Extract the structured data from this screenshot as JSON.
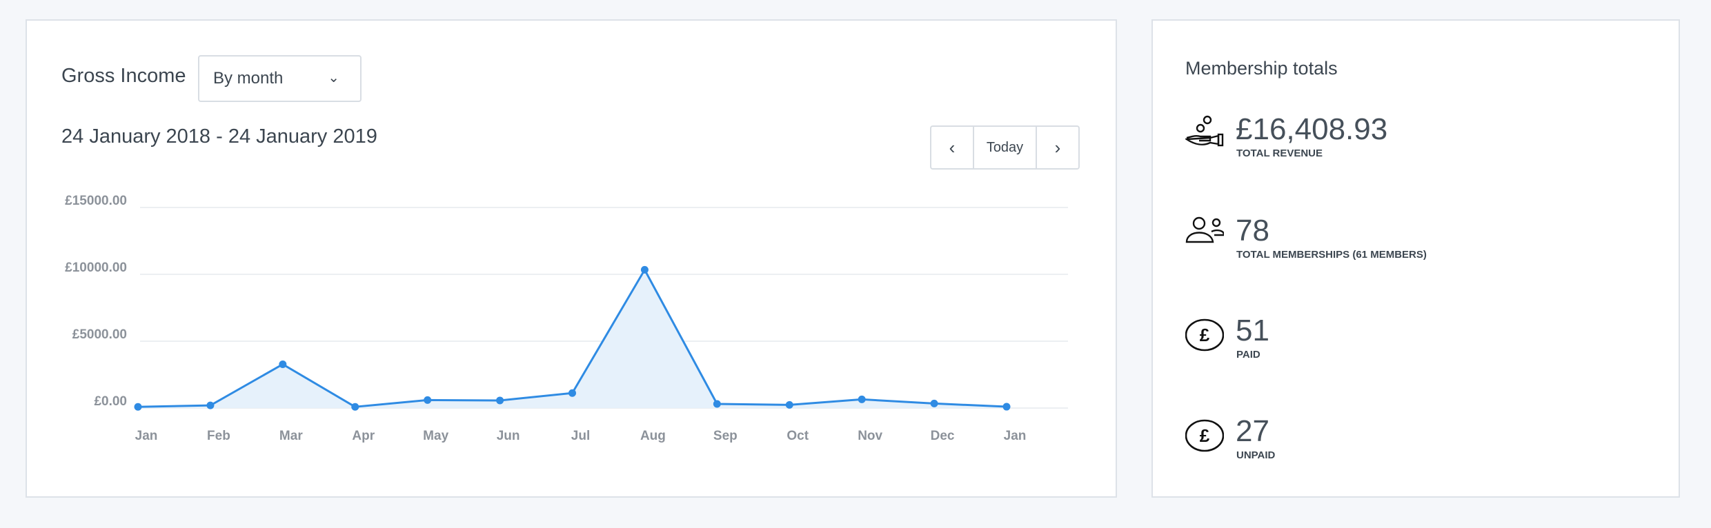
{
  "gross_income": {
    "title": "Gross Income",
    "period_select": {
      "value": "By month"
    },
    "date_range": "24 January 2018 - 24 January 2019",
    "nav": {
      "prev_icon": "chevron-left-icon",
      "today_label": "Today",
      "next_icon": "chevron-right-icon"
    }
  },
  "chart_data": {
    "type": "area",
    "categories": [
      "Jan",
      "Feb",
      "Mar",
      "Apr",
      "May",
      "Jun",
      "Jul",
      "Aug",
      "Sep",
      "Oct",
      "Nov",
      "Dec",
      "Jan"
    ],
    "values": [
      90,
      200,
      3275,
      90,
      600,
      570,
      1120,
      10340,
      310,
      240,
      650,
      340,
      100
    ],
    "y_ticks": [
      "£0.00",
      "£5000.00",
      "£10000.00",
      "£15000.00"
    ],
    "y_tick_values": [
      0,
      5000,
      10000,
      15000
    ],
    "ylim": [
      0,
      15000
    ],
    "grid": true,
    "line_color": "#2f8be3",
    "fill_color": "#e6f1fb"
  },
  "membership_totals": {
    "title": "Membership totals",
    "stats": [
      {
        "icon": "hand-coins-icon",
        "value": "£16,408.93",
        "label": "TOTAL REVENUE"
      },
      {
        "icon": "users-icon",
        "value": "78",
        "label": "TOTAL MEMBERSHIPS (61 MEMBERS)"
      },
      {
        "icon": "pound-circle-icon",
        "value": "51",
        "label": "PAID"
      },
      {
        "icon": "pound-circle-icon",
        "value": "27",
        "label": "UNPAID"
      }
    ]
  }
}
